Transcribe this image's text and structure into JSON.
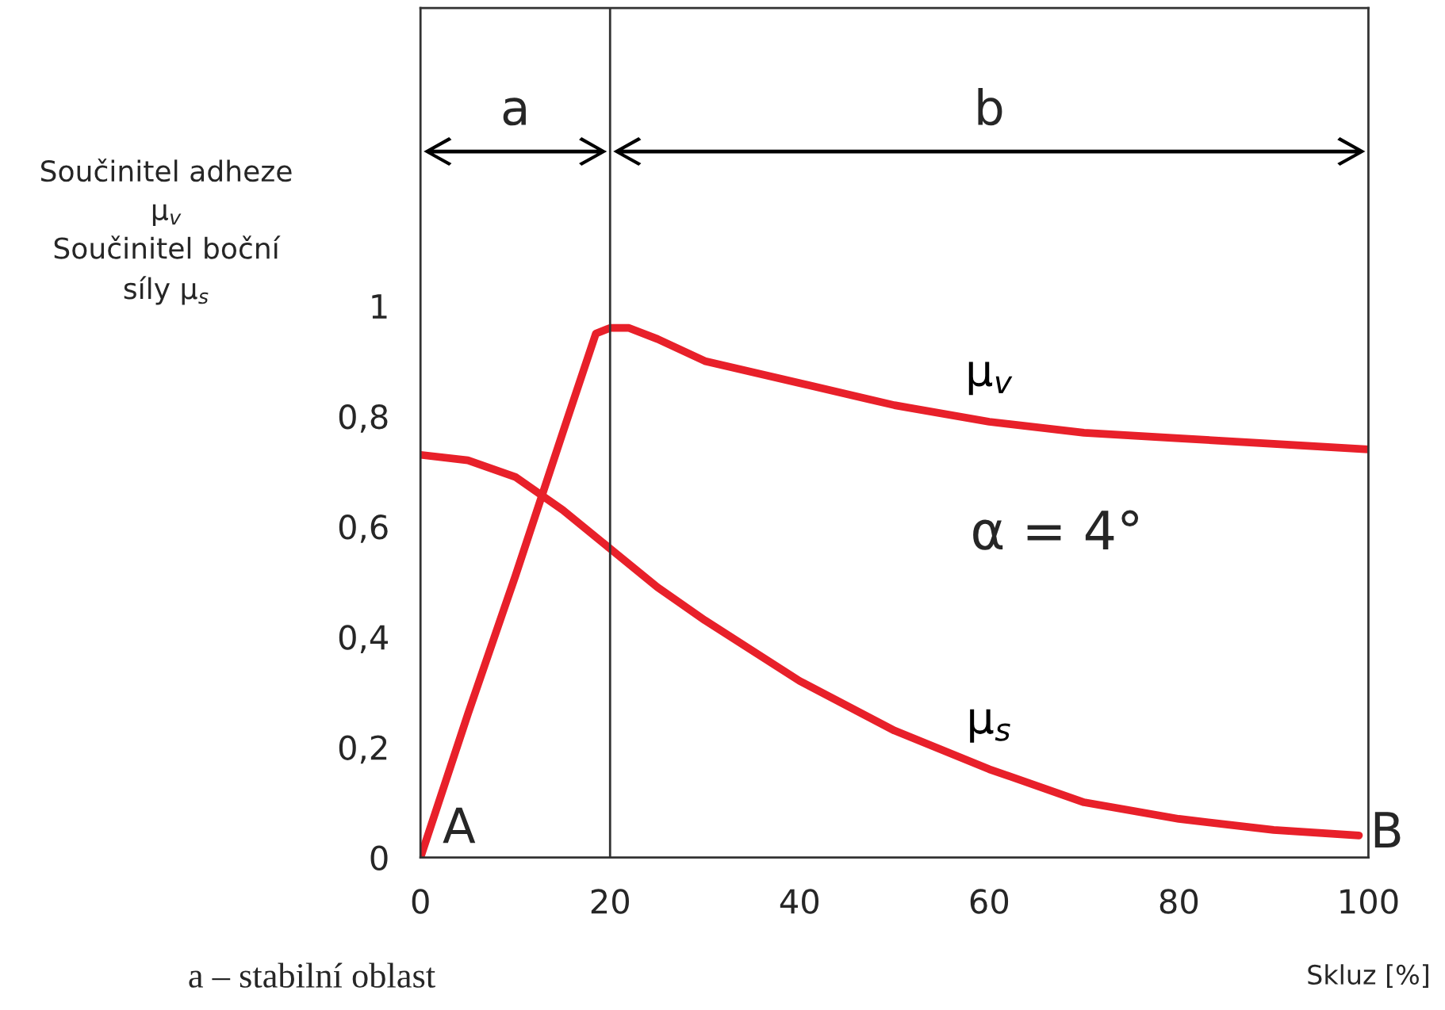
{
  "chart_data": {
    "type": "line",
    "ylabel": "Součinitel adheze\nμ$_{v}$\nSoučinitel boční\nsíly μ$_{s}$",
    "xlabel": "Skluz [%]",
    "series": [
      {
        "name": "μ$_{v}$",
        "color": "#e8202a",
        "x": [
          0,
          5,
          10,
          15,
          18.5,
          20,
          22,
          25,
          30,
          40,
          50,
          60,
          70,
          80,
          90,
          100
        ],
        "values": [
          0,
          0.26,
          0.51,
          0.77,
          0.95,
          0.96,
          0.96,
          0.94,
          0.9,
          0.86,
          0.82,
          0.79,
          0.77,
          0.76,
          0.75,
          0.74
        ]
      },
      {
        "name": "μ$_{s}$",
        "color": "#e8202a",
        "x": [
          0,
          5,
          10,
          15,
          20,
          25,
          30,
          40,
          50,
          60,
          70,
          80,
          90,
          99
        ],
        "values": [
          0.73,
          0.72,
          0.69,
          0.63,
          0.56,
          0.49,
          0.43,
          0.32,
          0.23,
          0.16,
          0.1,
          0.07,
          0.05,
          0.04
        ]
      }
    ],
    "xlim": [
      0,
      100
    ],
    "ylim": [
      0,
      1.54
    ],
    "xticks": [
      0,
      20,
      40,
      60,
      80,
      100
    ],
    "yticks": [
      0,
      {
        "value": 0.2,
        "label": "0,2"
      },
      {
        "value": 0.4,
        "label": "0,4"
      },
      {
        "value": 0.6,
        "label": "0,6"
      },
      {
        "value": 0.8,
        "label": "0,8"
      },
      1
    ],
    "ref_lines": [
      {
        "axis": "x",
        "value": 20
      }
    ],
    "annotations": [
      {
        "text": "A",
        "x": 0,
        "y": 0
      },
      "B",
      "a",
      "b",
      "α = 4°",
      "a – stabilní oblast"
    ],
    "grid": false,
    "legend": false,
    "marker": "none",
    "line_style": "solid"
  }
}
